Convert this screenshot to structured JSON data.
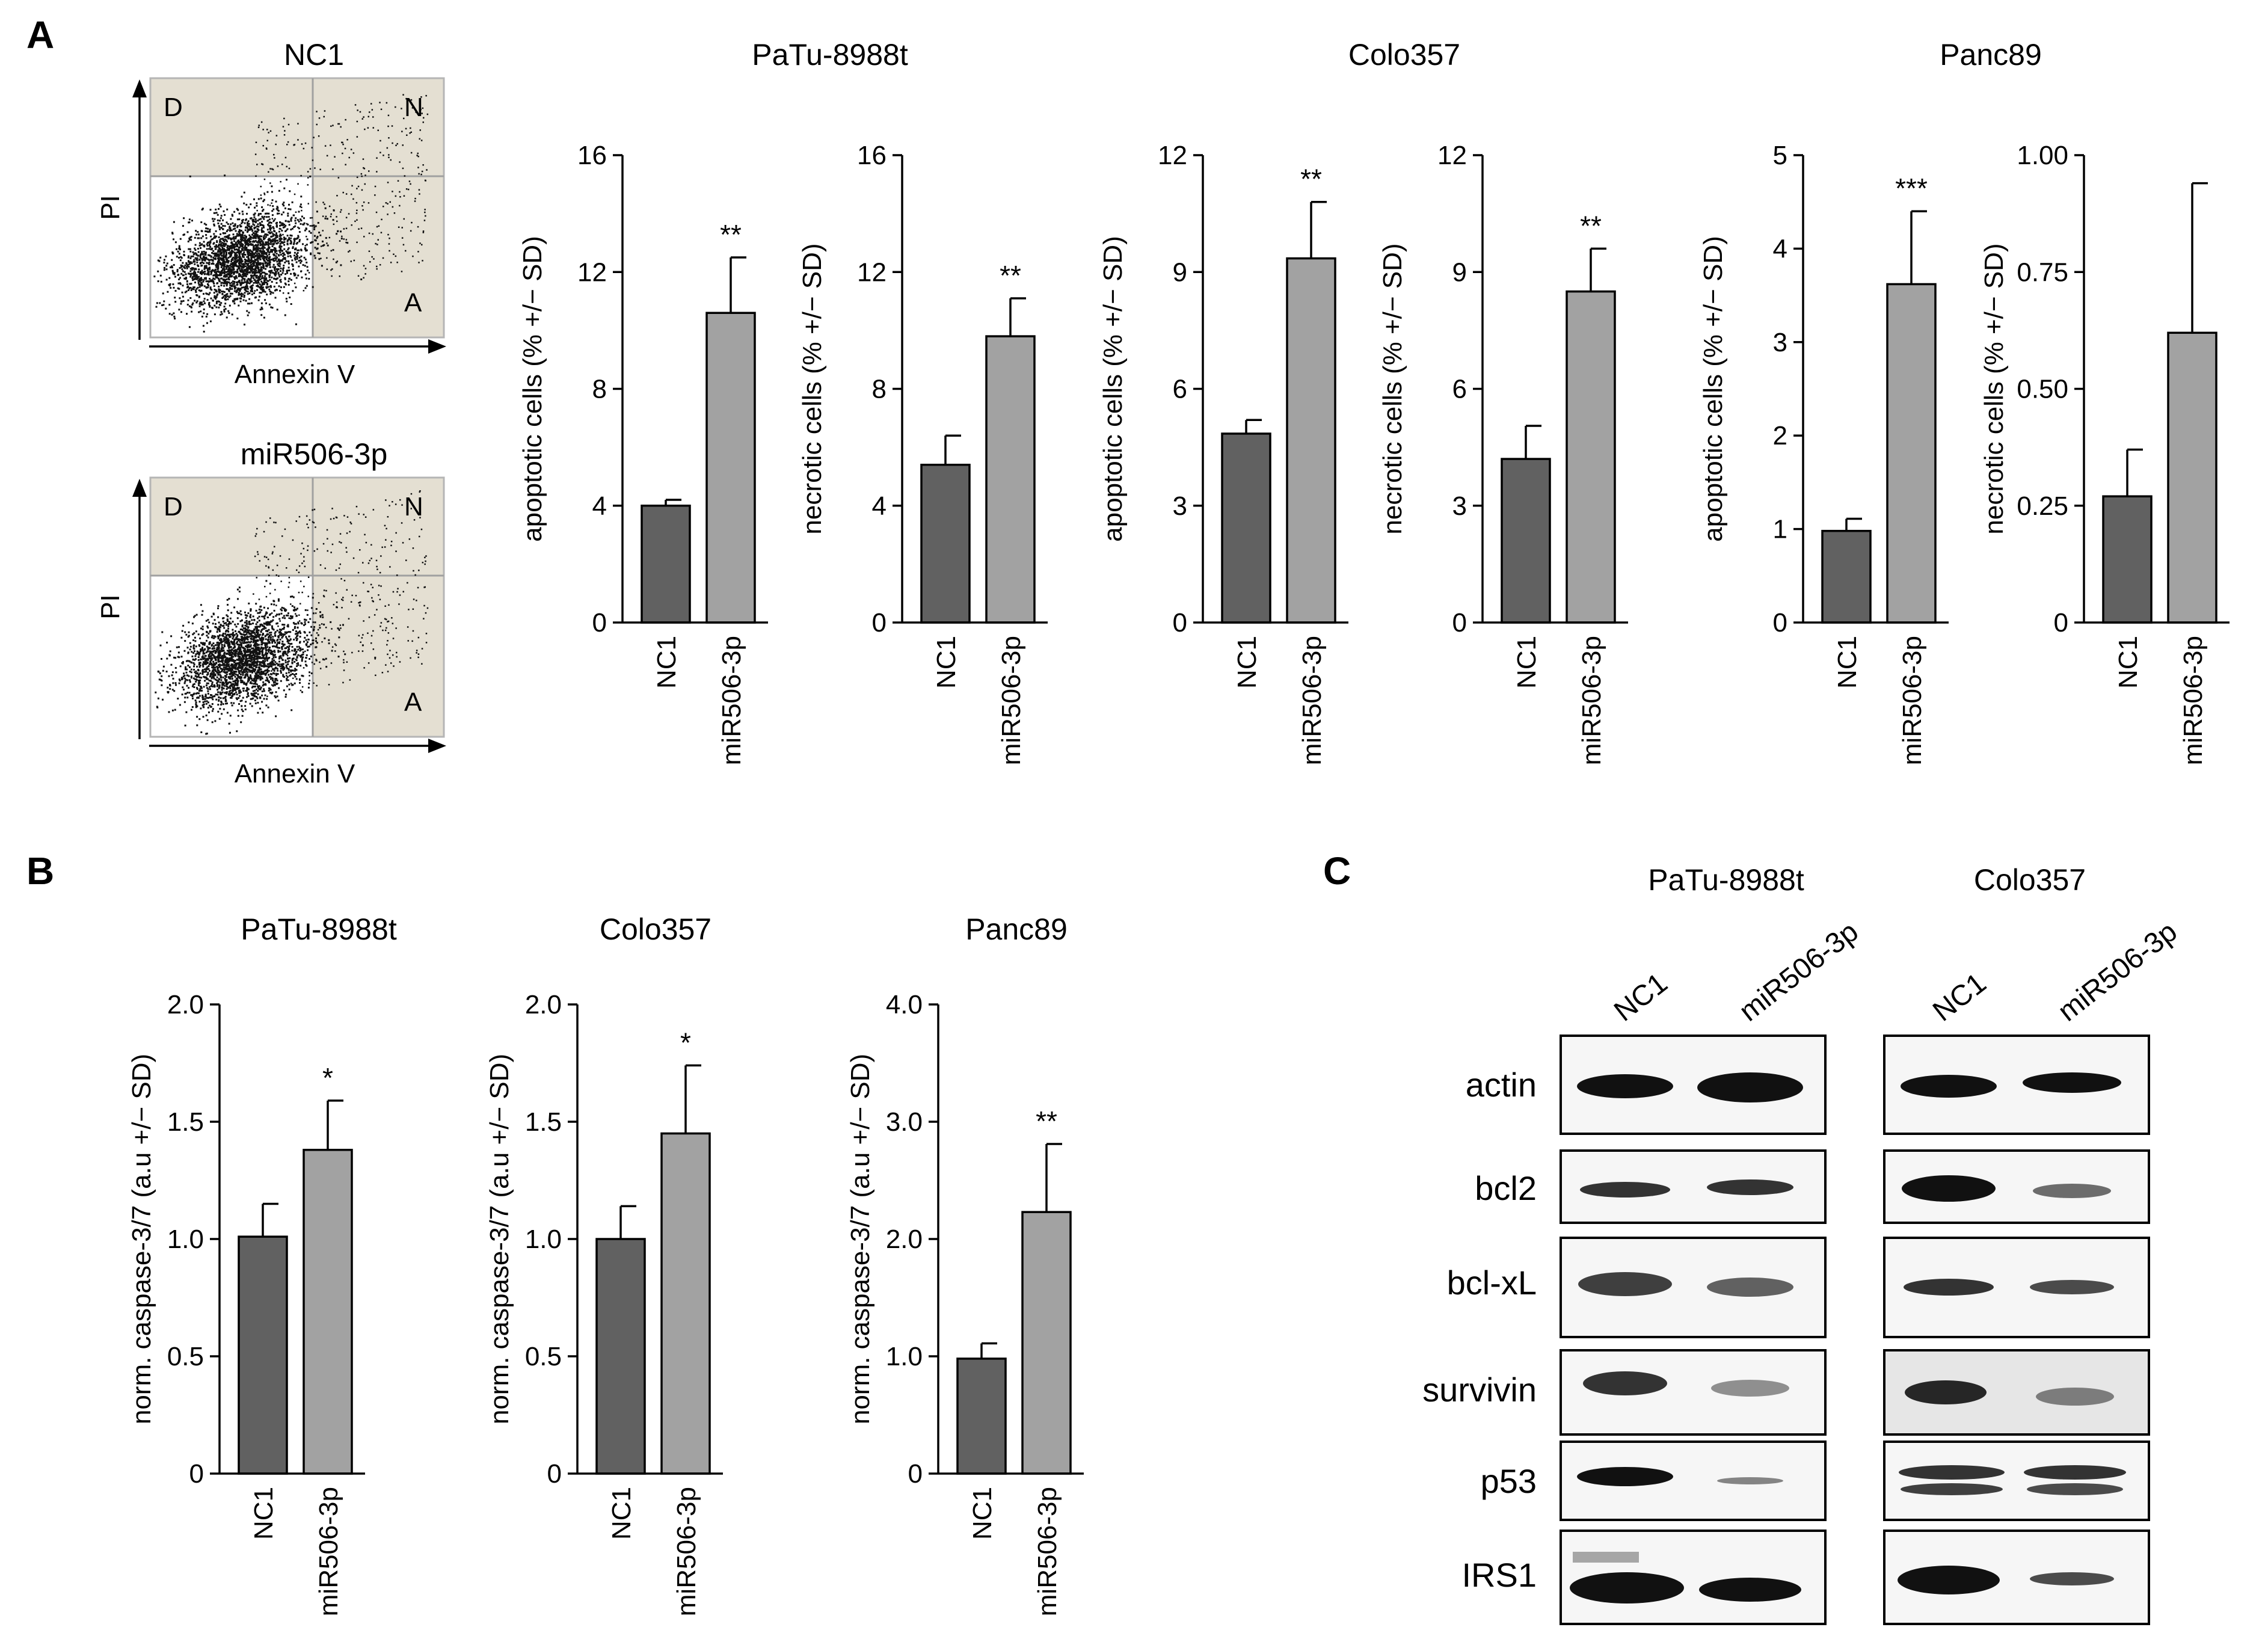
{
  "panels": {
    "a": "A",
    "b": "B",
    "c": "C"
  },
  "flow": [
    {
      "title": "NC1",
      "ylabel": "PI",
      "xlabel": "Annexin V",
      "q_d": "D",
      "q_n": "N",
      "q_a": "A"
    },
    {
      "title": "miR506-3p",
      "ylabel": "PI",
      "xlabel": "Annexin V",
      "q_d": "D",
      "q_n": "N",
      "q_a": "A"
    }
  ],
  "colors": {
    "nc1_bar": "#616161",
    "mir_bar": "#a2a2a2",
    "quadrant_fill": "#e4dfd2",
    "quadrant_line": "#a0a0a0"
  },
  "group_titles_a": [
    "PaTu-8988t",
    "Colo357",
    "Panc89"
  ],
  "chart_data": [
    {
      "id": "a1",
      "type": "bar",
      "cell_line": "PaTu-8988t",
      "ylabel": "apoptotic cells (% +/− SD)",
      "categories": [
        "NC1",
        "miR506-3p"
      ],
      "values": [
        4.0,
        10.6
      ],
      "errors": [
        0.2,
        1.9
      ],
      "ylim": [
        0,
        16
      ],
      "ticks": [
        "0",
        "4",
        "8",
        "12",
        "16"
      ],
      "significance": [
        "",
        "**"
      ]
    },
    {
      "id": "a2",
      "type": "bar",
      "cell_line": "PaTu-8988t",
      "ylabel": "necrotic cells (% +/− SD)",
      "categories": [
        "NC1",
        "miR506-3p"
      ],
      "values": [
        5.4,
        9.8
      ],
      "errors": [
        1.0,
        1.3
      ],
      "ylim": [
        0,
        16
      ],
      "ticks": [
        "0",
        "4",
        "8",
        "12",
        "16"
      ],
      "significance": [
        "",
        "**"
      ]
    },
    {
      "id": "a3",
      "type": "bar",
      "cell_line": "Colo357",
      "ylabel": "apoptotic cells (% +/− SD)",
      "categories": [
        "NC1",
        "miR506-3p"
      ],
      "values": [
        4.85,
        9.35
      ],
      "errors": [
        0.35,
        1.45
      ],
      "ylim": [
        0,
        12
      ],
      "ticks": [
        "0",
        "3",
        "6",
        "9",
        "12"
      ],
      "significance": [
        "",
        "**"
      ]
    },
    {
      "id": "a4",
      "type": "bar",
      "cell_line": "Colo357",
      "ylabel": "necrotic cells (% +/− SD)",
      "categories": [
        "NC1",
        "miR506-3p"
      ],
      "values": [
        4.2,
        8.5
      ],
      "errors": [
        0.85,
        1.1
      ],
      "ylim": [
        0,
        12
      ],
      "ticks": [
        "0",
        "3",
        "6",
        "9",
        "12"
      ],
      "significance": [
        "",
        "**"
      ]
    },
    {
      "id": "a5",
      "type": "bar",
      "cell_line": "Panc89",
      "ylabel": "apoptotic cells (% +/− SD)",
      "categories": [
        "NC1",
        "miR506-3p"
      ],
      "values": [
        0.98,
        3.62
      ],
      "errors": [
        0.13,
        0.78
      ],
      "ylim": [
        0,
        5
      ],
      "ticks": [
        "0",
        "1",
        "2",
        "3",
        "4",
        "5"
      ],
      "significance": [
        "",
        "***"
      ]
    },
    {
      "id": "a6",
      "type": "bar",
      "cell_line": "Panc89",
      "ylabel": "necrotic cells (% +/− SD)",
      "categories": [
        "NC1",
        "miR506-3p"
      ],
      "values": [
        0.27,
        0.62
      ],
      "errors": [
        0.1,
        0.32
      ],
      "ylim": [
        0,
        1.0
      ],
      "ticks": [
        "0",
        "0.25",
        "0.50",
        "0.75",
        "1.00"
      ],
      "significance": [
        "",
        ""
      ]
    },
    {
      "id": "b1",
      "type": "bar",
      "title": "PaTu-8988t",
      "ylabel": "norm. caspase-3/7 (a.u +/− SD)",
      "categories": [
        "NC1",
        "miR506-3p"
      ],
      "values": [
        1.01,
        1.38
      ],
      "errors": [
        0.14,
        0.21
      ],
      "ylim": [
        0,
        2.0
      ],
      "ticks": [
        "0",
        "0.5",
        "1.0",
        "1.5",
        "2.0"
      ],
      "significance": [
        "",
        "*"
      ]
    },
    {
      "id": "b2",
      "type": "bar",
      "title": "Colo357",
      "ylabel": "norm. caspase-3/7 (a.u +/− SD)",
      "categories": [
        "NC1",
        "miR506-3p"
      ],
      "values": [
        1.0,
        1.45
      ],
      "errors": [
        0.14,
        0.29
      ],
      "ylim": [
        0,
        2.0
      ],
      "ticks": [
        "0",
        "0.5",
        "1.0",
        "1.5",
        "2.0"
      ],
      "significance": [
        "",
        "*"
      ]
    },
    {
      "id": "b3",
      "type": "bar",
      "title": "Panc89",
      "ylabel": "norm. caspase-3/7 (a.u +/− SD)",
      "categories": [
        "NC1",
        "miR506-3p"
      ],
      "values": [
        0.98,
        2.23
      ],
      "errors": [
        0.13,
        0.58
      ],
      "ylim": [
        0,
        4.0
      ],
      "ticks": [
        "0",
        "1.0",
        "2.0",
        "3.0",
        "4.0"
      ],
      "significance": [
        "",
        "**"
      ]
    }
  ],
  "western": {
    "cell_lines": [
      "PaTu-8988t",
      "Colo357"
    ],
    "lanes": [
      "NC1",
      "miR506-3p"
    ],
    "proteins": [
      "actin",
      "bcl2",
      "bcl-xL",
      "survivin",
      "p53",
      "IRS1"
    ]
  }
}
